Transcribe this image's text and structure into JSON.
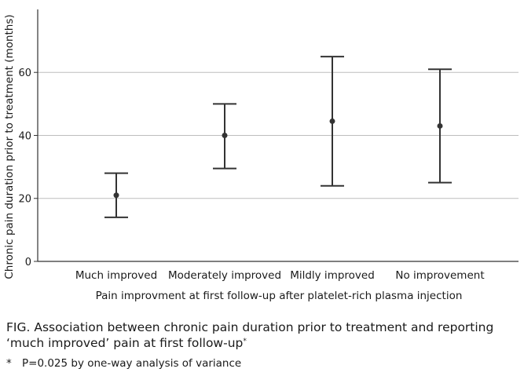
{
  "chart_data": {
    "type": "errorbar",
    "categories": [
      "Much improved",
      "Moderately improved",
      "Mildly improved",
      "No improvement"
    ],
    "mean": [
      21,
      40,
      44.5,
      43
    ],
    "lower": [
      14,
      29.5,
      24,
      25
    ],
    "upper": [
      28,
      50,
      65,
      61
    ],
    "ylabel": "Chronic pain duration prior to treatment (months)",
    "xlabel": "Pain improvment at first follow-up after platelet-rich plasma injection",
    "ylim": [
      0,
      78
    ],
    "yticks": [
      0,
      20,
      40,
      60
    ],
    "grid": true,
    "colors": {
      "marker": "#333333",
      "grid": "#bdbdbd",
      "axis": "#333333"
    }
  },
  "caption": {
    "text": "FIG. Association between chronic pain duration prior to treatment and reporting ‘much improved’ pain at first follow-up",
    "mark": "*"
  },
  "footnote": {
    "mark": "*",
    "text": "P=0.025 by one-way analysis of variance"
  }
}
